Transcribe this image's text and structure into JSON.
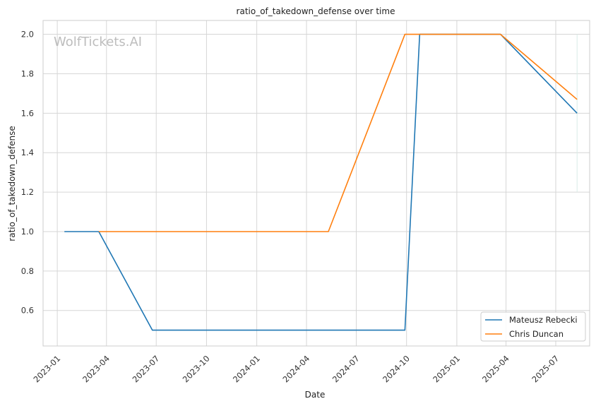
{
  "chart_data": {
    "type": "line",
    "title": "ratio_of_takedown_defense over time",
    "xlabel": "Date",
    "ylabel": "ratio_of_takedown_defense",
    "watermark": "WolfTickets.AI",
    "x_ticks": [
      "2023-01",
      "2023-04",
      "2023-07",
      "2023-10",
      "2024-01",
      "2024-04",
      "2024-07",
      "2024-10",
      "2025-01",
      "2025-04",
      "2025-07"
    ],
    "y_ticks": [
      "0.6",
      "0.8",
      "1.0",
      "1.2",
      "1.4",
      "1.6",
      "1.8",
      "2.0"
    ],
    "xlim": [
      "2022-12-06",
      "2025-09-01"
    ],
    "ylim": [
      0.42,
      2.07
    ],
    "grid": true,
    "legend_position": "bottom-right",
    "series": [
      {
        "name": "Mateusz Rebecki",
        "color": "#1f77b4",
        "points": [
          [
            "2023-01-14",
            1.0
          ],
          [
            "2023-03-18",
            1.0
          ],
          [
            "2023-06-24",
            0.5
          ],
          [
            "2024-09-28",
            0.5
          ],
          [
            "2024-10-25",
            2.0
          ],
          [
            "2025-03-22",
            2.0
          ],
          [
            "2025-08-09",
            1.6
          ]
        ]
      },
      {
        "name": "Chris Duncan",
        "color": "#ff7f0e",
        "points": [
          [
            "2023-03-18",
            1.0
          ],
          [
            "2024-05-11",
            1.0
          ],
          [
            "2024-09-28",
            2.0
          ],
          [
            "2025-03-22",
            2.0
          ],
          [
            "2025-08-09",
            1.67
          ]
        ]
      }
    ],
    "annotation_line": {
      "color": "#d9ece6",
      "x": "2025-08-09",
      "y_range": [
        1.2,
        2.0
      ]
    }
  }
}
